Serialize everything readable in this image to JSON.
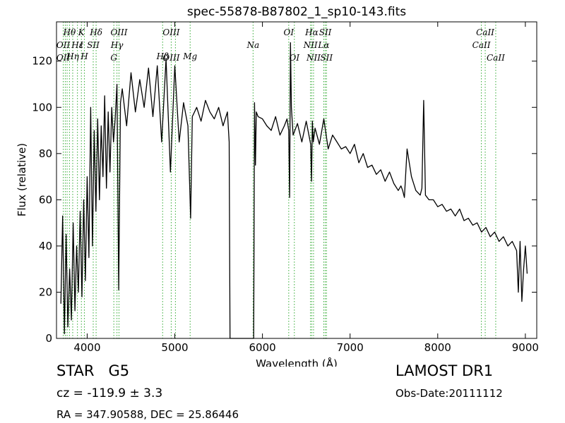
{
  "chart_data": {
    "type": "line",
    "title": "spec-55878-B87802_1_sp10-143.fits",
    "xlabel": "Wavelength (Å)",
    "ylabel": "Flux (relative)",
    "xlim": [
      3650,
      9130
    ],
    "ylim": [
      0,
      137
    ],
    "xticks": [
      4000,
      5000,
      6000,
      7000,
      8000,
      9000
    ],
    "yticks": [
      0,
      20,
      40,
      60,
      80,
      100,
      120
    ],
    "grid": false,
    "legend": "none",
    "line_color": "#000000",
    "marker_color": "#33aa33",
    "series": [
      {
        "x": [
          3700,
          3720,
          3740,
          3760,
          3780,
          3800,
          3820,
          3840,
          3860,
          3880,
          3900,
          3920,
          3940,
          3960,
          3980,
          4000,
          4020,
          4040,
          4060,
          4080,
          4100,
          4120,
          4140,
          4160,
          4180,
          4200,
          4220,
          4240,
          4260,
          4280,
          4300,
          4320,
          4340,
          4360,
          4380,
          4400,
          4450,
          4500,
          4550,
          4600,
          4650,
          4700,
          4750,
          4800,
          4850,
          4900,
          4950,
          5000,
          5050,
          5100,
          5150,
          5180,
          5200,
          5250,
          5300,
          5350,
          5400,
          5450,
          5500,
          5550,
          5600,
          5620,
          5630,
          5640,
          5900,
          5910,
          5920,
          5930,
          5950,
          6000,
          6050,
          6100,
          6150,
          6200,
          6250,
          6280,
          6300,
          6310,
          6320,
          6330,
          6350,
          6400,
          6450,
          6500,
          6550,
          6560,
          6570,
          6580,
          6600,
          6650,
          6700,
          6750,
          6800,
          6850,
          6900,
          6950,
          7000,
          7050,
          7100,
          7150,
          7200,
          7250,
          7300,
          7350,
          7400,
          7450,
          7500,
          7550,
          7580,
          7600,
          7620,
          7650,
          7700,
          7750,
          7800,
          7820,
          7840,
          7860,
          7900,
          7950,
          8000,
          8050,
          8100,
          8150,
          8200,
          8250,
          8300,
          8350,
          8400,
          8450,
          8500,
          8550,
          8600,
          8650,
          8700,
          8750,
          8800,
          8850,
          8900,
          8920,
          8940,
          8960,
          8980,
          9000,
          9020
        ],
        "y": [
          15,
          53,
          2,
          45,
          5,
          30,
          8,
          50,
          12,
          40,
          20,
          55,
          18,
          60,
          25,
          70,
          35,
          100,
          40,
          90,
          55,
          95,
          60,
          92,
          70,
          105,
          65,
          98,
          72,
          100,
          85,
          95,
          110,
          21,
          102,
          108,
          92,
          115,
          98,
          112,
          100,
          117,
          96,
          118,
          85,
          121,
          72,
          118,
          85,
          102,
          92,
          52,
          96,
          100,
          94,
          103,
          98,
          95,
          100,
          92,
          98,
          85,
          0,
          0,
          0,
          102,
          75,
          98,
          96,
          95,
          92,
          90,
          96,
          88,
          92,
          95,
          90,
          61,
          128,
          100,
          88,
          93,
          85,
          94,
          84,
          68,
          94,
          85,
          91,
          84,
          95,
          82,
          88,
          85,
          82,
          83,
          80,
          84,
          76,
          80,
          74,
          75,
          71,
          73,
          68,
          72,
          67,
          64,
          66,
          64,
          61,
          82,
          70,
          64,
          62,
          65,
          103,
          62,
          60,
          60,
          57,
          58,
          55,
          56,
          53,
          56,
          51,
          52,
          49,
          50,
          46,
          48,
          44,
          46,
          42,
          44,
          40,
          42,
          38,
          20,
          42,
          16,
          30,
          40,
          28
        ]
      }
    ],
    "annotations": [
      {
        "label": "Hθ",
        "x": 3798,
        "row": 1
      },
      {
        "label": "K",
        "x": 3934,
        "row": 1
      },
      {
        "label": "Hδ",
        "x": 4102,
        "row": 1
      },
      {
        "label": "OIII",
        "x": 4363,
        "row": 1
      },
      {
        "label": "OIII",
        "x": 4959,
        "row": 1
      },
      {
        "label": "OI",
        "x": 6300,
        "row": 1
      },
      {
        "label": "Hα",
        "x": 6563,
        "row": 1
      },
      {
        "label": "SII",
        "x": 6717,
        "row": 1
      },
      {
        "label": "CaII",
        "x": 8542,
        "row": 1
      },
      {
        "label": "OII",
        "x": 3727,
        "row": 2
      },
      {
        "label": "Hε",
        "x": 3889,
        "row": 2
      },
      {
        "label": "I",
        "x": 3934,
        "row": 2
      },
      {
        "label": "SII",
        "x": 4069,
        "row": 2
      },
      {
        "label": "Hγ",
        "x": 4340,
        "row": 2
      },
      {
        "label": "Na",
        "x": 5893,
        "row": 2
      },
      {
        "label": "NII",
        "x": 6548,
        "row": 2
      },
      {
        "label": "Lα",
        "x": 6700,
        "row": 2
      },
      {
        "label": "CaII",
        "x": 8498,
        "row": 2
      },
      {
        "label": "Hη",
        "x": 3835,
        "row": 3
      },
      {
        "label": "H",
        "x": 3968,
        "row": 3
      },
      {
        "label": "Hβ",
        "x": 4861,
        "row": 3
      },
      {
        "label": "Mg",
        "x": 5175,
        "row": 3
      },
      {
        "label": "OI",
        "x": 6364,
        "row": 4
      },
      {
        "label": "OII",
        "x": 3727,
        "row": 4
      },
      {
        "label": "G",
        "x": 4304,
        "row": 4
      },
      {
        "label": "OIII",
        "x": 4959,
        "row": 4
      },
      {
        "label": "NII",
        "x": 6583,
        "row": 4
      },
      {
        "label": "SII",
        "x": 6731,
        "row": 4
      },
      {
        "label": "CaII",
        "x": 8662,
        "row": 4
      }
    ],
    "marker_lines": [
      3727,
      3750,
      3771,
      3798,
      3835,
      3889,
      3934,
      3968,
      4069,
      4102,
      4304,
      4340,
      4363,
      4861,
      4959,
      5007,
      5175,
      5893,
      6300,
      6364,
      6548,
      6563,
      6583,
      6700,
      6717,
      6731,
      8498,
      8542,
      8662
    ]
  },
  "info": {
    "class": "STAR",
    "subclass": "G5",
    "cz": "cz = -119.9  ± 3.3",
    "coords": "RA = 347.90588, DEC = 25.86446",
    "survey": "LAMOST DR1",
    "obs_date": "Obs-Date:20111112"
  }
}
